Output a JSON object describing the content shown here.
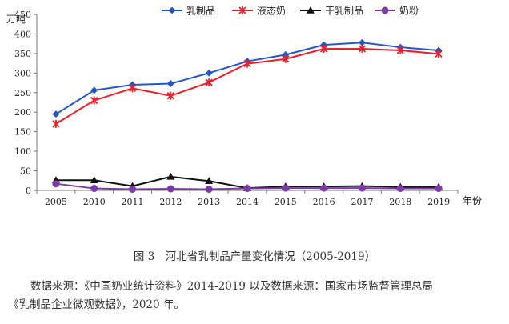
{
  "chart_data": {
    "type": "line",
    "ylabel": "万吨",
    "xlabel": "年份",
    "categories": [
      "2005",
      "2010",
      "2011",
      "2012",
      "2013",
      "2014",
      "2015",
      "2016",
      "2017",
      "2018",
      "2019"
    ],
    "ylim": [
      0,
      450
    ],
    "yticks": [
      0,
      50,
      100,
      150,
      200,
      250,
      300,
      350,
      400,
      450
    ],
    "grid": false,
    "legend_position": "top",
    "series": [
      {
        "name": "乳制品",
        "color": "#2457c5",
        "marker": "diamond",
        "values": [
          195,
          256,
          270,
          273,
          300,
          330,
          347,
          372,
          378,
          366,
          358
        ]
      },
      {
        "name": "液态奶",
        "color": "#e8212a",
        "marker": "star",
        "values": [
          170,
          230,
          261,
          242,
          276,
          324,
          336,
          362,
          362,
          358,
          349
        ]
      },
      {
        "name": "干乳制品",
        "color": "#111111",
        "marker": "triangle",
        "values": [
          26,
          26,
          11,
          35,
          24,
          6,
          10,
          10,
          11,
          9,
          9
        ]
      },
      {
        "name": "奶粉",
        "color": "#7b3aa4",
        "marker": "circle",
        "values": [
          17,
          5,
          3,
          4,
          3,
          5,
          6,
          6,
          6,
          5,
          5
        ]
      }
    ]
  },
  "caption": "图 3　河北省乳制品产量变化情况（2005-2019）",
  "source_line1": "数据来源：《中国奶业统计资料》2014-2019 以及数据来源：国家市场监督管理总局",
  "source_line2": "《乳制品企业微观数据》，2020 年。"
}
